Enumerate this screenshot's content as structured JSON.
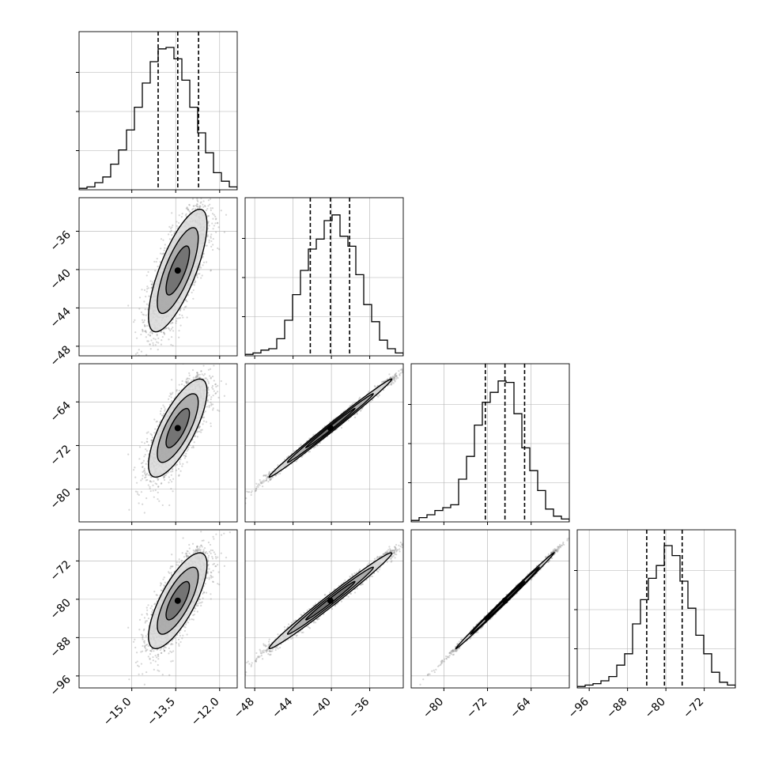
{
  "chart_data": {
    "type": "corner",
    "params": [
      {
        "range": [
          -16.8,
          -11.4
        ],
        "ticks": [
          -15.0,
          -13.5,
          -12.0
        ],
        "tick_labels": [
          "−15.0",
          "−13.5",
          "−12.0"
        ],
        "quantiles": [
          -14.1,
          -13.43,
          -12.72
        ],
        "hist_counts": [
          0.01,
          0.02,
          0.05,
          0.09,
          0.18,
          0.28,
          0.42,
          0.58,
          0.75,
          0.9,
          0.99,
          1.0,
          0.92,
          0.77,
          0.58,
          0.4,
          0.26,
          0.12,
          0.06,
          0.02
        ]
      },
      {
        "range": [
          -49.0,
          -32.5
        ],
        "ticks": [
          -48,
          -44,
          -40,
          -36
        ],
        "tick_labels": [
          "−48",
          "−44",
          "−40",
          "−36"
        ],
        "quantiles": [
          -42.2,
          -40.1,
          -38.1
        ],
        "hist_counts": [
          0.01,
          0.02,
          0.04,
          0.05,
          0.12,
          0.25,
          0.43,
          0.6,
          0.75,
          0.82,
          0.95,
          0.99,
          0.84,
          0.77,
          0.57,
          0.36,
          0.24,
          0.11,
          0.05,
          0.02
        ]
      },
      {
        "range": [
          -86.0,
          -57.0
        ],
        "ticks": [
          -80,
          -72,
          -64
        ],
        "tick_labels": [
          "−80",
          "−72",
          "−64"
        ],
        "quantiles": [
          -72.4,
          -68.8,
          -65.2
        ],
        "hist_counts": [
          0.01,
          0.03,
          0.05,
          0.08,
          0.1,
          0.12,
          0.3,
          0.46,
          0.68,
          0.84,
          0.91,
          0.99,
          0.98,
          0.76,
          0.52,
          0.36,
          0.22,
          0.09,
          0.04,
          0.02
        ]
      },
      {
        "range": [
          -98.5,
          -65.5
        ],
        "ticks": [
          -96,
          -88,
          -80,
          -72
        ],
        "tick_labels": [
          "−96",
          "−88",
          "−80",
          "−72"
        ],
        "quantiles": [
          -84.0,
          -80.3,
          -76.6
        ],
        "hist_counts": [
          0.01,
          0.02,
          0.03,
          0.05,
          0.08,
          0.16,
          0.24,
          0.45,
          0.62,
          0.77,
          0.86,
          1.0,
          0.93,
          0.75,
          0.56,
          0.37,
          0.24,
          0.11,
          0.04,
          0.02
        ]
      }
    ],
    "sigma": [
      0.5,
      3.2,
      4.5,
      5.0
    ],
    "corr": [
      [
        1.0,
        0.75,
        0.75,
        0.75
      ],
      [
        0.75,
        1.0,
        0.995,
        0.99
      ],
      [
        0.75,
        0.995,
        1.0,
        0.998
      ],
      [
        0.75,
        0.99,
        0.998,
        1.0
      ]
    ],
    "means": [
      -13.43,
      -40.1,
      -68.8,
      -80.3
    ],
    "grid": true,
    "colors": {
      "lines": "#000000",
      "points": "#8a8a8a",
      "grid": "#b0b0b0"
    }
  }
}
